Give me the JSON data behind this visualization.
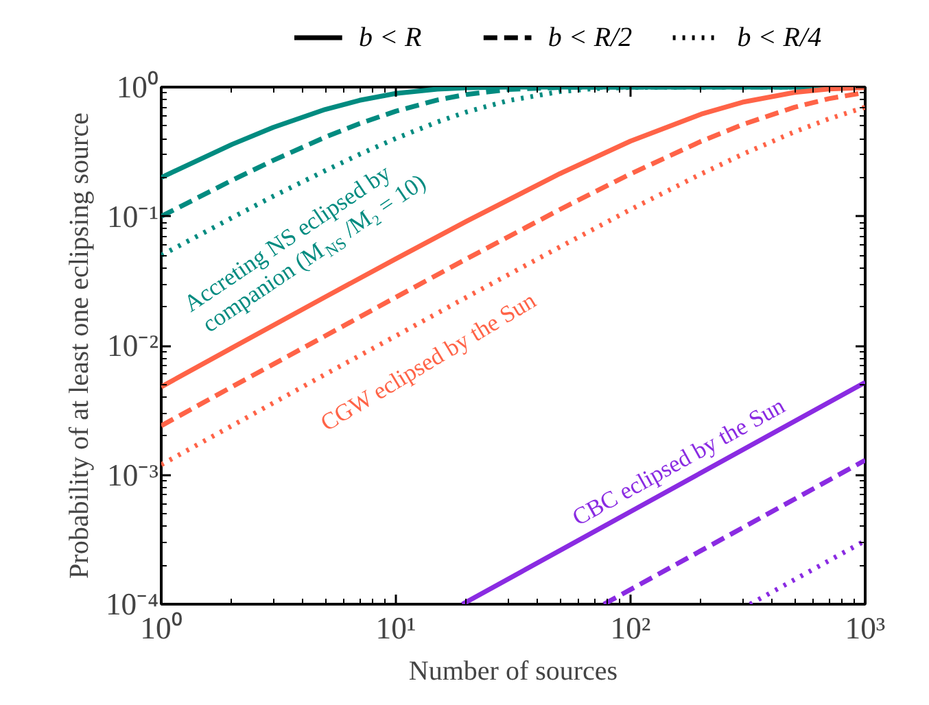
{
  "chart_data": {
    "type": "line",
    "xlabel": "Number of sources",
    "ylabel": "Probability of at least one eclipsing source",
    "log": "xy",
    "xlim": [
      1,
      1000
    ],
    "ylim": [
      0.0001,
      1
    ],
    "xticks": [
      {
        "value": 1,
        "label": "10⁰"
      },
      {
        "value": 10,
        "label": "10¹"
      },
      {
        "value": 100,
        "label": "10²"
      },
      {
        "value": 1000,
        "label": "10³"
      }
    ],
    "yticks": [
      {
        "value": 0.0001,
        "label": "10⁻⁴"
      },
      {
        "value": 0.001,
        "label": "10⁻³"
      },
      {
        "value": 0.01,
        "label": "10⁻²"
      },
      {
        "value": 0.1,
        "label": "10⁻¹"
      },
      {
        "value": 1,
        "label": "10⁰"
      }
    ],
    "grid": false,
    "legend": "top",
    "series": [
      {
        "name": "b < R",
        "color": "#008b80",
        "line_style": "solid",
        "x": [
          1,
          2,
          3,
          5,
          7,
          10,
          15,
          20,
          30,
          50,
          100,
          1000
        ],
        "values": [
          0.2,
          0.36,
          0.488,
          0.672,
          0.79,
          0.893,
          0.965,
          0.988,
          0.999,
          1.0,
          1.0,
          1.0
        ]
      },
      {
        "name": "b < R/2",
        "color": "#008b80",
        "line_style": "dashed",
        "x": [
          1,
          2,
          3,
          5,
          7,
          10,
          15,
          20,
          30,
          50,
          100,
          1000
        ],
        "values": [
          0.1,
          0.19,
          0.271,
          0.41,
          0.522,
          0.651,
          0.794,
          0.878,
          0.958,
          0.995,
          1.0,
          1.0
        ]
      },
      {
        "name": "b < R/4",
        "color": "#008b80",
        "line_style": "dotted",
        "x": [
          1,
          2,
          3,
          5,
          7,
          10,
          15,
          20,
          30,
          50,
          70,
          100,
          200,
          1000
        ],
        "values": [
          0.05,
          0.0975,
          0.143,
          0.226,
          0.302,
          0.401,
          0.537,
          0.642,
          0.785,
          0.923,
          0.973,
          0.994,
          1.0,
          1.0
        ]
      },
      {
        "color": "#ff6347",
        "line_style": "solid",
        "x": [
          1,
          2,
          5,
          10,
          20,
          50,
          100,
          200,
          300,
          500,
          700,
          1000
        ],
        "values": [
          0.0048,
          0.0096,
          0.0238,
          0.047,
          0.0917,
          0.214,
          0.382,
          0.618,
          0.764,
          0.91,
          0.966,
          0.992
        ]
      },
      {
        "color": "#ff6347",
        "line_style": "dashed",
        "x": [
          1,
          2,
          5,
          10,
          20,
          50,
          100,
          200,
          300,
          500,
          700,
          1000
        ],
        "values": [
          0.0024,
          0.0048,
          0.0119,
          0.0237,
          0.0469,
          0.113,
          0.213,
          0.381,
          0.513,
          0.699,
          0.814,
          0.909
        ]
      },
      {
        "color": "#ff6347",
        "line_style": "dotted",
        "x": [
          1,
          2,
          5,
          10,
          20,
          50,
          100,
          200,
          300,
          500,
          700,
          1000
        ],
        "values": [
          0.0012,
          0.0024,
          0.006,
          0.0119,
          0.0237,
          0.058,
          0.113,
          0.213,
          0.302,
          0.451,
          0.568,
          0.699
        ]
      },
      {
        "color": "#8a2be2",
        "line_style": "solid",
        "x": [
          19.2,
          100,
          1000
        ],
        "values": [
          0.0001,
          0.00052,
          0.0052
        ]
      },
      {
        "color": "#8a2be2",
        "line_style": "dashed",
        "x": [
          77,
          1000
        ],
        "values": [
          0.0001,
          0.0013
        ]
      },
      {
        "color": "#8a2be2",
        "line_style": "dotted",
        "x": [
          323,
          1000
        ],
        "values": [
          0.0001,
          0.00031
        ]
      }
    ],
    "annotations": [
      "Accreting NS eclipsed by\ncompanion (M$_{NS}$/M₂ = 10)",
      "CGW eclipsed by the Sun",
      "CBC eclipsed by the Sun"
    ]
  }
}
